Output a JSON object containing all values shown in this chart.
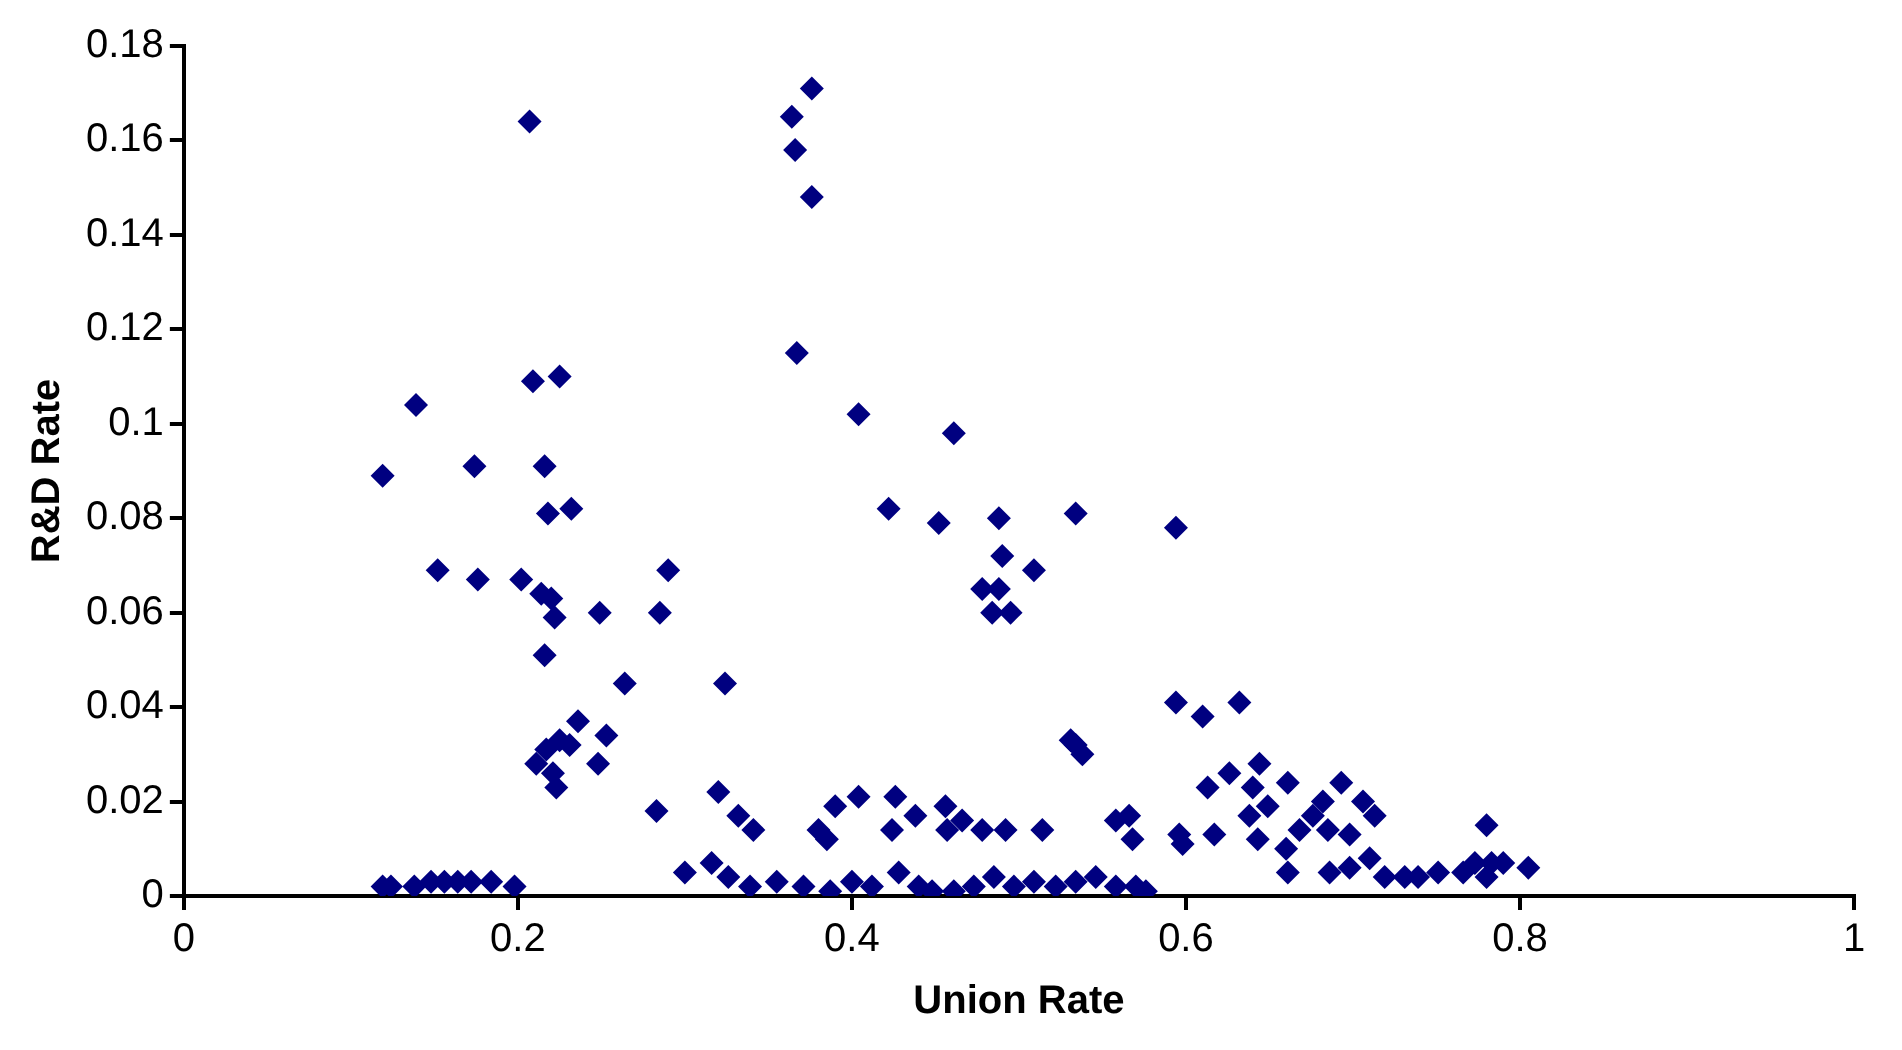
{
  "chart_data": {
    "type": "scatter",
    "xlabel": "Union Rate",
    "ylabel": "R&D Rate",
    "xlim": [
      0,
      1
    ],
    "xticks": [
      0,
      0.2,
      0.4,
      0.6,
      0.8,
      1
    ],
    "ylim": [
      0,
      0.18
    ],
    "yticks": [
      0,
      0.02,
      0.04,
      0.06,
      0.08,
      0.1,
      0.12,
      0.14,
      0.16,
      0.18
    ],
    "grid": false,
    "legend": false,
    "marker": "diamond",
    "series": [
      {
        "color": "#000080",
        "x": [
          0.207,
          0.209,
          0.225,
          0.139,
          0.119,
          0.174,
          0.216,
          0.218,
          0.232,
          0.152,
          0.176,
          0.202,
          0.214,
          0.22,
          0.222,
          0.216,
          0.249,
          0.29,
          0.285,
          0.264,
          0.324,
          0.236,
          0.253,
          0.248,
          0.211,
          0.217,
          0.225,
          0.231,
          0.223,
          0.221,
          0.283,
          0.32,
          0.332,
          0.341,
          0.3,
          0.316,
          0.326,
          0.119,
          0.124,
          0.138,
          0.148,
          0.156,
          0.164,
          0.172,
          0.184,
          0.198,
          0.376,
          0.364,
          0.366,
          0.376,
          0.367,
          0.404,
          0.461,
          0.422,
          0.452,
          0.488,
          0.534,
          0.594,
          0.49,
          0.509,
          0.478,
          0.488,
          0.484,
          0.495,
          0.534,
          0.538,
          0.531,
          0.594,
          0.61,
          0.632,
          0.613,
          0.626,
          0.596,
          0.598,
          0.617,
          0.38,
          0.385,
          0.39,
          0.404,
          0.426,
          0.424,
          0.438,
          0.456,
          0.466,
          0.457,
          0.478,
          0.492,
          0.514,
          0.558,
          0.566,
          0.568,
          0.339,
          0.355,
          0.371,
          0.387,
          0.4,
          0.412,
          0.428,
          0.44,
          0.448,
          0.461,
          0.473,
          0.485,
          0.497,
          0.509,
          0.522,
          0.534,
          0.546,
          0.558,
          0.57,
          0.576,
          0.644,
          0.64,
          0.661,
          0.638,
          0.649,
          0.643,
          0.66,
          0.661,
          0.668,
          0.676,
          0.682,
          0.693,
          0.685,
          0.686,
          0.698,
          0.706,
          0.713,
          0.71,
          0.698,
          0.719,
          0.731,
          0.739,
          0.751,
          0.766,
          0.78,
          0.773,
          0.783,
          0.78,
          0.79,
          0.805
        ],
        "values": [
          0.164,
          0.109,
          0.11,
          0.104,
          0.089,
          0.091,
          0.091,
          0.081,
          0.082,
          0.069,
          0.067,
          0.067,
          0.064,
          0.063,
          0.059,
          0.051,
          0.06,
          0.069,
          0.06,
          0.045,
          0.045,
          0.037,
          0.034,
          0.028,
          0.028,
          0.031,
          0.033,
          0.032,
          0.023,
          0.026,
          0.018,
          0.022,
          0.017,
          0.014,
          0.005,
          0.007,
          0.004,
          0.002,
          0.002,
          0.002,
          0.003,
          0.003,
          0.003,
          0.003,
          0.003,
          0.002,
          0.171,
          0.165,
          0.158,
          0.148,
          0.115,
          0.102,
          0.098,
          0.082,
          0.079,
          0.08,
          0.081,
          0.078,
          0.072,
          0.069,
          0.065,
          0.065,
          0.06,
          0.06,
          0.032,
          0.03,
          0.033,
          0.041,
          0.038,
          0.041,
          0.023,
          0.026,
          0.013,
          0.011,
          0.013,
          0.014,
          0.012,
          0.019,
          0.021,
          0.021,
          0.014,
          0.017,
          0.019,
          0.016,
          0.014,
          0.014,
          0.014,
          0.014,
          0.016,
          0.017,
          0.012,
          0.002,
          0.003,
          0.002,
          0.001,
          0.003,
          0.002,
          0.005,
          0.002,
          0.001,
          0.001,
          0.002,
          0.004,
          0.002,
          0.003,
          0.002,
          0.003,
          0.004,
          0.002,
          0.002,
          0.001,
          0.028,
          0.023,
          0.024,
          0.017,
          0.019,
          0.012,
          0.01,
          0.005,
          0.014,
          0.017,
          0.02,
          0.024,
          0.014,
          0.005,
          0.013,
          0.02,
          0.017,
          0.008,
          0.006,
          0.004,
          0.004,
          0.004,
          0.005,
          0.005,
          0.015,
          0.007,
          0.007,
          0.004,
          0.007,
          0.006
        ]
      }
    ]
  }
}
